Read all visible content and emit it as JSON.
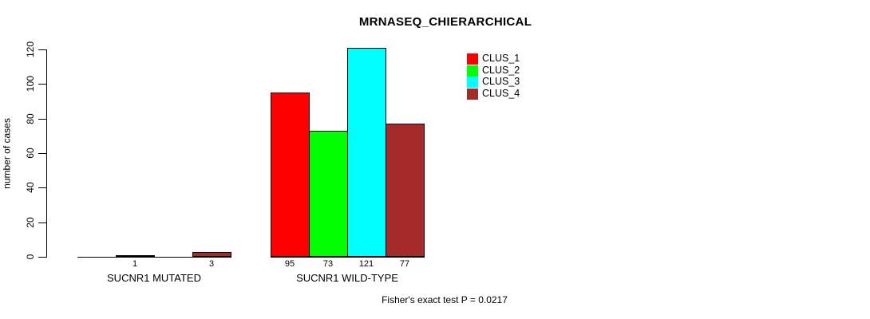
{
  "chart_data": {
    "type": "bar",
    "title": "MRNASEQ_CHIERARCHICAL",
    "xlabel": "",
    "ylabel": "number of cases",
    "ylim": [
      0,
      120
    ],
    "yticks": [
      0,
      20,
      40,
      60,
      80,
      100,
      120
    ],
    "grid": false,
    "legend_position": "top-right",
    "categories": [
      "SUCNR1 MUTATED",
      "SUCNR1 WILD-TYPE"
    ],
    "series": [
      {
        "name": "CLUS_1",
        "color": "#ff0000",
        "values": [
          0,
          95
        ]
      },
      {
        "name": "CLUS_2",
        "color": "#00ff00",
        "values": [
          1,
          73
        ]
      },
      {
        "name": "CLUS_3",
        "color": "#00ffff",
        "values": [
          0,
          121
        ]
      },
      {
        "name": "CLUS_4",
        "color": "#a52a2a",
        "values": [
          3,
          77
        ]
      }
    ],
    "bar_value_labels": [
      [
        "",
        "1",
        "",
        "3"
      ],
      [
        "95",
        "73",
        "121",
        "77"
      ]
    ],
    "annotation": "Fisher's exact test P = 0.0217"
  }
}
